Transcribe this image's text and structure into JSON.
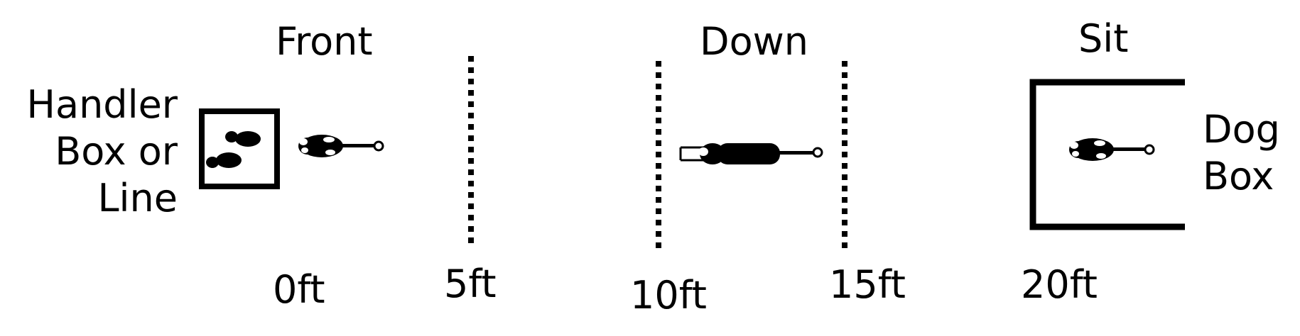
{
  "positions": {
    "front": "Front",
    "down": "Down",
    "sit": "Sit"
  },
  "handler_box": {
    "line1": "Handler",
    "line2": "Box or",
    "line3": "Line"
  },
  "dog_box": {
    "line1": "Dog",
    "line2": "Box"
  },
  "distances": [
    "0ft",
    "5ft",
    "10ft",
    "15ft",
    "20ft"
  ]
}
